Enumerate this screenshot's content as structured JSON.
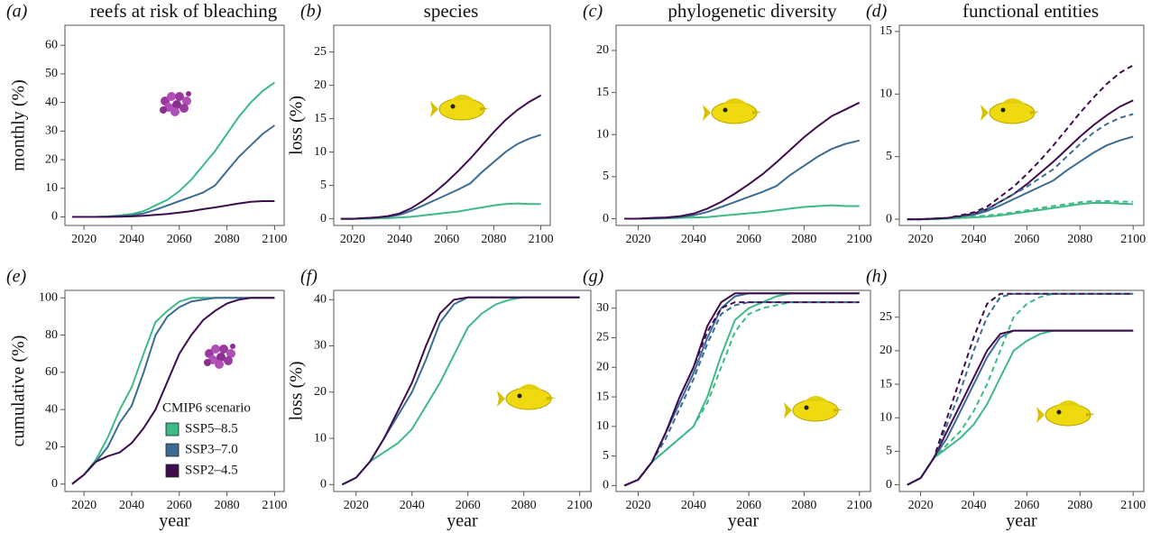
{
  "chart_data": [
    {
      "type": "line",
      "label": "(a)",
      "title": "reefs at risk of bleaching",
      "ylabel": "monthly (%)",
      "x": [
        2015,
        2020,
        2025,
        2030,
        2035,
        2040,
        2045,
        2050,
        2055,
        2060,
        2065,
        2070,
        2075,
        2080,
        2085,
        2090,
        2095,
        2100
      ],
      "xlim": [
        2012,
        2104
      ],
      "xticks": [
        2020,
        2040,
        2060,
        2080,
        2100
      ],
      "ylim": [
        -3,
        67
      ],
      "yticks": [
        0,
        10,
        20,
        30,
        40,
        50,
        60
      ],
      "series": [
        {
          "color": "#3dba85",
          "values": [
            0,
            0,
            0,
            0.2,
            0.5,
            1,
            2,
            4,
            6,
            9,
            13,
            18,
            23,
            29,
            35,
            40,
            44,
            47
          ]
        },
        {
          "color": "#3b6c94",
          "values": [
            0,
            0,
            0,
            0.1,
            0.3,
            0.6,
            1.2,
            2.5,
            4,
            5.5,
            7,
            8.5,
            11,
            16,
            21,
            25,
            29,
            32
          ]
        },
        {
          "color": "#3f0c4e",
          "values": [
            0,
            0,
            0,
            0,
            0.1,
            0.2,
            0.4,
            0.7,
            1,
            1.5,
            2,
            2.7,
            3.3,
            4,
            4.7,
            5.3,
            5.5,
            5.5
          ]
        }
      ]
    },
    {
      "type": "line",
      "label": "(b)",
      "title": "species",
      "ylabel": "loss (%)",
      "x": [
        2015,
        2020,
        2025,
        2030,
        2035,
        2040,
        2045,
        2050,
        2055,
        2060,
        2065,
        2070,
        2075,
        2080,
        2085,
        2090,
        2095,
        2100
      ],
      "xlim": [
        2012,
        2104
      ],
      "xticks": [
        2020,
        2040,
        2060,
        2080,
        2100
      ],
      "ylim": [
        -1,
        29
      ],
      "yticks": [
        0,
        5,
        10,
        15,
        20,
        25
      ],
      "series": [
        {
          "color": "#3dba85",
          "values": [
            0,
            0,
            0,
            0.05,
            0.1,
            0.2,
            0.3,
            0.5,
            0.7,
            0.9,
            1.1,
            1.4,
            1.7,
            2,
            2.2,
            2.3,
            2.2,
            2.2
          ]
        },
        {
          "color": "#3b6c94",
          "values": [
            0,
            0,
            0.1,
            0.2,
            0.3,
            0.6,
            1.2,
            2,
            2.8,
            3.6,
            4.4,
            5.3,
            7,
            8.5,
            10,
            11.2,
            12,
            12.6
          ]
        },
        {
          "color": "#3f0c4e",
          "values": [
            0,
            0,
            0.1,
            0.2,
            0.4,
            0.8,
            1.6,
            2.7,
            4,
            5.5,
            7.2,
            9,
            11,
            13,
            14.8,
            16.3,
            17.5,
            18.5
          ]
        }
      ]
    },
    {
      "type": "line",
      "label": "(c)",
      "title": "phylogenetic diversity",
      "x": [
        2015,
        2020,
        2025,
        2030,
        2035,
        2040,
        2045,
        2050,
        2055,
        2060,
        2065,
        2070,
        2075,
        2080,
        2085,
        2090,
        2095,
        2100
      ],
      "xlim": [
        2012,
        2104
      ],
      "xticks": [
        2020,
        2040,
        2060,
        2080,
        2100
      ],
      "ylim": [
        -0.8,
        23
      ],
      "yticks": [
        0,
        5,
        10,
        15,
        20
      ],
      "series": [
        {
          "color": "#3dba85",
          "values": [
            0,
            0,
            0,
            0.05,
            0.1,
            0.15,
            0.2,
            0.35,
            0.5,
            0.65,
            0.8,
            1,
            1.2,
            1.4,
            1.5,
            1.6,
            1.5,
            1.5
          ]
        },
        {
          "color": "#3b6c94",
          "values": [
            0,
            0,
            0.05,
            0.1,
            0.2,
            0.4,
            0.8,
            1.4,
            2,
            2.6,
            3.2,
            3.9,
            5.2,
            6.3,
            7.4,
            8.3,
            8.9,
            9.3
          ]
        },
        {
          "color": "#3f0c4e",
          "values": [
            0,
            0,
            0.1,
            0.15,
            0.3,
            0.6,
            1.2,
            2,
            3,
            4.1,
            5.3,
            6.7,
            8.2,
            9.7,
            11,
            12.2,
            13,
            13.8
          ]
        }
      ]
    },
    {
      "type": "line",
      "label": "(d)",
      "title": "functional entities",
      "x": [
        2015,
        2020,
        2025,
        2030,
        2035,
        2040,
        2045,
        2050,
        2055,
        2060,
        2065,
        2070,
        2075,
        2080,
        2085,
        2090,
        2095,
        2100
      ],
      "xlim": [
        2012,
        2104
      ],
      "xticks": [
        2020,
        2040,
        2060,
        2080,
        2100
      ],
      "ylim": [
        -0.5,
        15.5
      ],
      "yticks": [
        0,
        5,
        10,
        15
      ],
      "series": [
        {
          "color": "#3dba85",
          "values": [
            0,
            0,
            0,
            0.05,
            0.1,
            0.15,
            0.2,
            0.3,
            0.45,
            0.6,
            0.75,
            0.9,
            1.05,
            1.2,
            1.3,
            1.3,
            1.25,
            1.2
          ]
        },
        {
          "color": "#3b6c94",
          "values": [
            0,
            0,
            0.05,
            0.1,
            0.2,
            0.35,
            0.65,
            1.1,
            1.6,
            2.1,
            2.6,
            3.1,
            3.9,
            4.6,
            5.3,
            5.9,
            6.3,
            6.6
          ]
        },
        {
          "color": "#3f0c4e",
          "values": [
            0,
            0,
            0.05,
            0.1,
            0.25,
            0.45,
            0.8,
            1.4,
            2,
            2.8,
            3.7,
            4.6,
            5.6,
            6.6,
            7.5,
            8.3,
            9,
            9.5
          ]
        },
        {
          "color": "#3dba85",
          "dash": true,
          "values": [
            0,
            0,
            0,
            0.05,
            0.1,
            0.2,
            0.3,
            0.4,
            0.55,
            0.7,
            0.9,
            1.05,
            1.2,
            1.35,
            1.45,
            1.45,
            1.4,
            1.4
          ]
        },
        {
          "color": "#3b6c94",
          "dash": true,
          "values": [
            0,
            0,
            0.05,
            0.1,
            0.25,
            0.45,
            0.8,
            1.4,
            2,
            2.6,
            3.3,
            4,
            5,
            6,
            6.9,
            7.6,
            8.1,
            8.4
          ]
        },
        {
          "color": "#3f0c4e",
          "dash": true,
          "values": [
            0,
            0,
            0.05,
            0.1,
            0.3,
            0.55,
            1,
            1.8,
            2.6,
            3.6,
            4.7,
            5.9,
            7.2,
            8.5,
            9.7,
            10.8,
            11.7,
            12.3
          ]
        }
      ]
    },
    {
      "type": "line",
      "label": "(e)",
      "ylabel": "cumulative (%)",
      "xlabel": "year",
      "legend_title": "CMIP6 scenario",
      "x": [
        2015,
        2020,
        2025,
        2030,
        2035,
        2040,
        2045,
        2050,
        2055,
        2060,
        2065,
        2070,
        2075,
        2080,
        2085,
        2090,
        2095,
        2100
      ],
      "xlim": [
        2012,
        2104
      ],
      "xticks": [
        2020,
        2040,
        2060,
        2080,
        2100
      ],
      "ylim": [
        -4,
        104
      ],
      "yticks": [
        0,
        20,
        40,
        60,
        80,
        100
      ],
      "series": [
        {
          "name": "SSP5–8.5",
          "color": "#3dba85",
          "values": [
            0,
            5,
            13,
            25,
            40,
            52,
            70,
            87,
            93,
            98,
            100,
            100,
            100,
            100,
            100,
            100,
            100,
            100
          ]
        },
        {
          "name": "SSP3–7.0",
          "color": "#3b6c94",
          "values": [
            0,
            5,
            12,
            20,
            33,
            42,
            60,
            80,
            90,
            95,
            98,
            99,
            100,
            100,
            100,
            100,
            100,
            100
          ]
        },
        {
          "name": "SSP2–4.5",
          "color": "#3f0c4e",
          "values": [
            0,
            5,
            12,
            15,
            17,
            22,
            30,
            40,
            55,
            70,
            80,
            88,
            93,
            97,
            99,
            100,
            100,
            100
          ]
        }
      ]
    },
    {
      "type": "line",
      "label": "(f)",
      "ylabel": "loss (%)",
      "xlabel": "year",
      "x": [
        2015,
        2020,
        2025,
        2030,
        2035,
        2040,
        2045,
        2050,
        2055,
        2060,
        2065,
        2070,
        2075,
        2080,
        2085,
        2090,
        2095,
        2100
      ],
      "xlim": [
        2012,
        2104
      ],
      "xticks": [
        2020,
        2040,
        2060,
        2080,
        2100
      ],
      "ylim": [
        -1.5,
        42
      ],
      "yticks": [
        0,
        10,
        20,
        30,
        40
      ],
      "series": [
        {
          "color": "#3dba85",
          "values": [
            0,
            1.5,
            5,
            7,
            9,
            12,
            17,
            22,
            28,
            34,
            37,
            39,
            40,
            40.5,
            40.5,
            40.5,
            40.5,
            40.5
          ]
        },
        {
          "color": "#3b6c94",
          "values": [
            0,
            1.5,
            5,
            10,
            15,
            20,
            27,
            35,
            39,
            40.5,
            40.5,
            40.5,
            40.5,
            40.5,
            40.5,
            40.5,
            40.5,
            40.5
          ]
        },
        {
          "color": "#3f0c4e",
          "values": [
            0,
            1.5,
            5,
            10,
            16,
            22,
            30,
            37,
            40,
            40.5,
            40.5,
            40.5,
            40.5,
            40.5,
            40.5,
            40.5,
            40.5,
            40.5
          ]
        }
      ]
    },
    {
      "type": "line",
      "label": "(g)",
      "xlabel": "year",
      "x": [
        2015,
        2020,
        2025,
        2030,
        2035,
        2040,
        2045,
        2050,
        2055,
        2060,
        2065,
        2070,
        2075,
        2080,
        2085,
        2090,
        2095,
        2100
      ],
      "xlim": [
        2012,
        2104
      ],
      "xticks": [
        2020,
        2040,
        2060,
        2080,
        2100
      ],
      "ylim": [
        -1,
        33
      ],
      "yticks": [
        0,
        5,
        10,
        15,
        20,
        25,
        30
      ],
      "series": [
        {
          "color": "#3dba85",
          "values": [
            0,
            1,
            4,
            6,
            8,
            10,
            15,
            22,
            28,
            30,
            31,
            32,
            32.5,
            32.5,
            32.5,
            32.5,
            32.5,
            32.5
          ]
        },
        {
          "color": "#3b6c94",
          "values": [
            0,
            1,
            4,
            9,
            14,
            19,
            25,
            30,
            32,
            32.5,
            32.5,
            32.5,
            32.5,
            32.5,
            32.5,
            32.5,
            32.5,
            32.5
          ]
        },
        {
          "color": "#3f0c4e",
          "values": [
            0,
            1,
            4,
            9,
            15,
            20,
            27,
            31,
            32.5,
            32.5,
            32.5,
            32.5,
            32.5,
            32.5,
            32.5,
            32.5,
            32.5,
            32.5
          ]
        },
        {
          "color": "#3dba85",
          "dash": true,
          "values": [
            0,
            1,
            4,
            6,
            8,
            10,
            14,
            20,
            26,
            29,
            30,
            30.5,
            31,
            31,
            31,
            31,
            31,
            31
          ]
        },
        {
          "color": "#3b6c94",
          "dash": true,
          "values": [
            0,
            1,
            4,
            8,
            13,
            18,
            24,
            29,
            30.5,
            31,
            31,
            31,
            31,
            31,
            31,
            31,
            31,
            31
          ]
        },
        {
          "color": "#3f0c4e",
          "dash": true,
          "values": [
            0,
            1,
            4,
            9,
            15,
            20,
            26,
            30,
            31,
            31,
            31,
            31,
            31,
            31,
            31,
            31,
            31,
            31
          ]
        }
      ]
    },
    {
      "type": "line",
      "label": "(h)",
      "xlabel": "year",
      "x": [
        2015,
        2020,
        2025,
        2030,
        2035,
        2040,
        2045,
        2050,
        2055,
        2060,
        2065,
        2070,
        2075,
        2080,
        2085,
        2090,
        2095,
        2100
      ],
      "xlim": [
        2012,
        2104
      ],
      "xticks": [
        2020,
        2040,
        2060,
        2080,
        2100
      ],
      "ylim": [
        -1,
        29
      ],
      "yticks": [
        0,
        5,
        10,
        15,
        20,
        25
      ],
      "series": [
        {
          "color": "#3dba85",
          "values": [
            0,
            1,
            4,
            5.5,
            7,
            9,
            12,
            16,
            20,
            21.5,
            22.5,
            23,
            23,
            23,
            23,
            23,
            23,
            23
          ]
        },
        {
          "color": "#3b6c94",
          "values": [
            0,
            1,
            4,
            7,
            11,
            15,
            19,
            22,
            23,
            23,
            23,
            23,
            23,
            23,
            23,
            23,
            23,
            23
          ]
        },
        {
          "color": "#3f0c4e",
          "values": [
            0,
            1,
            4,
            8,
            12,
            16,
            20,
            22.5,
            23,
            23,
            23,
            23,
            23,
            23,
            23,
            23,
            23,
            23
          ]
        },
        {
          "color": "#3dba85",
          "dash": true,
          "values": [
            0,
            1,
            4,
            6,
            8,
            11,
            15,
            20,
            25,
            27,
            28,
            28.5,
            28.5,
            28.5,
            28.5,
            28.5,
            28.5,
            28.5
          ]
        },
        {
          "color": "#3b6c94",
          "dash": true,
          "values": [
            0,
            1,
            4,
            9,
            14,
            20,
            25,
            28,
            28.5,
            28.5,
            28.5,
            28.5,
            28.5,
            28.5,
            28.5,
            28.5,
            28.5,
            28.5
          ]
        },
        {
          "color": "#3f0c4e",
          "dash": true,
          "values": [
            0,
            1,
            4,
            10,
            16,
            22,
            27,
            28.5,
            28.5,
            28.5,
            28.5,
            28.5,
            28.5,
            28.5,
            28.5,
            28.5,
            28.5,
            28.5
          ]
        }
      ]
    }
  ]
}
